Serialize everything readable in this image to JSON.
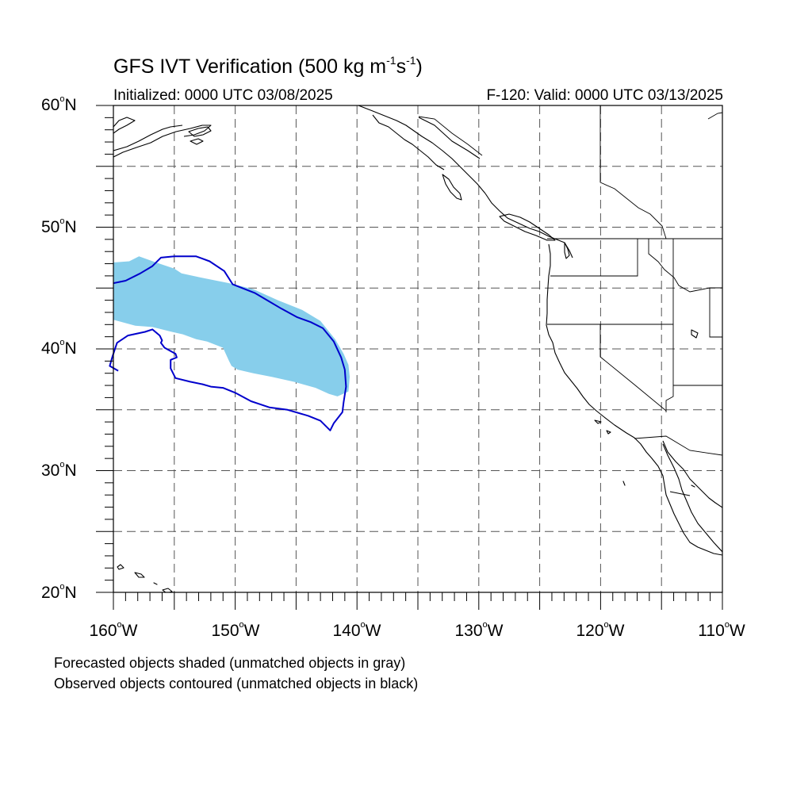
{
  "title": {
    "prefix": "GFS IVT Verification (500 kg m",
    "exp1": "-1",
    "mid": "s",
    "exp2": "-1",
    "suffix": ")"
  },
  "subtitle_left": "Initialized: 0000 UTC 03/08/2025",
  "subtitle_right": "F-120: Valid: 0000 UTC 03/13/2025",
  "map": {
    "lon_range": [
      -160,
      -110
    ],
    "lat_range": [
      20,
      60
    ],
    "grid": "dashed every 5 degrees",
    "lat_labels": [
      {
        "value": 60,
        "text": "60",
        "hemi": "N"
      },
      {
        "value": 50,
        "text": "50",
        "hemi": "N"
      },
      {
        "value": 40,
        "text": "40",
        "hemi": "N"
      },
      {
        "value": 30,
        "text": "30",
        "hemi": "N"
      },
      {
        "value": 20,
        "text": "20",
        "hemi": "N"
      }
    ],
    "lon_labels": [
      {
        "value": -160,
        "text": "160",
        "hemi": "W"
      },
      {
        "value": -150,
        "text": "150",
        "hemi": "W"
      },
      {
        "value": -140,
        "text": "140",
        "hemi": "W"
      },
      {
        "value": -130,
        "text": "130",
        "hemi": "W"
      },
      {
        "value": -120,
        "text": "120",
        "hemi": "W"
      },
      {
        "value": -110,
        "text": "110",
        "hemi": "W"
      }
    ],
    "forecast_object_color": "#87ceeb",
    "observed_contour_color": "#0000cc",
    "forecast_object_outline": [
      [
        -160,
        47.1
      ],
      [
        -158.7,
        47.2
      ],
      [
        -157.9,
        47.6
      ],
      [
        -156.5,
        47.1
      ],
      [
        -155,
        46.6
      ],
      [
        -154.4,
        46.2
      ],
      [
        -152.5,
        45.8
      ],
      [
        -150.5,
        45.4
      ],
      [
        -148.5,
        44.9
      ],
      [
        -146.5,
        44
      ],
      [
        -144.5,
        43.2
      ],
      [
        -143,
        42.3
      ],
      [
        -141.8,
        40.8
      ],
      [
        -141.1,
        39.6
      ],
      [
        -140.7,
        38.7
      ],
      [
        -140.6,
        37.7
      ],
      [
        -140.7,
        36.5
      ],
      [
        -141.6,
        36.1
      ],
      [
        -142.3,
        36.3
      ],
      [
        -143.4,
        36.8
      ],
      [
        -145.2,
        37.3
      ],
      [
        -147,
        37.7
      ],
      [
        -148.5,
        38
      ],
      [
        -149.8,
        38.3
      ],
      [
        -150.3,
        38.6
      ],
      [
        -150.5,
        39
      ],
      [
        -151,
        40.1
      ],
      [
        -152.3,
        40.6
      ],
      [
        -153.2,
        40.8
      ],
      [
        -154.3,
        41.2
      ],
      [
        -155.2,
        41.4
      ],
      [
        -156.8,
        41.8
      ],
      [
        -158.2,
        41.9
      ],
      [
        -160,
        42.4
      ]
    ],
    "observed_object_outline": [
      [
        -160,
        45.4
      ],
      [
        -159,
        45.6
      ],
      [
        -157.8,
        46.2
      ],
      [
        -156.8,
        46.8
      ],
      [
        -156.1,
        47.5
      ],
      [
        -155,
        47.6
      ],
      [
        -153.2,
        47.6
      ],
      [
        -152.1,
        47.2
      ],
      [
        -150.9,
        46.4
      ],
      [
        -150.2,
        45.3
      ],
      [
        -148.4,
        44.6
      ],
      [
        -146.2,
        43.3
      ],
      [
        -144.9,
        42.6
      ],
      [
        -143.8,
        42.2
      ],
      [
        -142.8,
        41.7
      ],
      [
        -141.9,
        40.6
      ],
      [
        -141.3,
        39.3
      ],
      [
        -141,
        38.3
      ],
      [
        -140.9,
        36.9
      ],
      [
        -141.1,
        35.6
      ],
      [
        -141.2,
        34.8
      ],
      [
        -141.9,
        33.9
      ],
      [
        -142.2,
        33.3
      ],
      [
        -143,
        34.1
      ],
      [
        -144,
        34.5
      ],
      [
        -145.7,
        35
      ],
      [
        -147.2,
        35.2
      ],
      [
        -148.7,
        35.7
      ],
      [
        -150,
        36.4
      ],
      [
        -151,
        36.8
      ],
      [
        -152,
        36.9
      ],
      [
        -152.7,
        37.1
      ],
      [
        -153.7,
        37.3
      ],
      [
        -154.9,
        37.6
      ],
      [
        -155.3,
        38.4
      ],
      [
        -155.3,
        39.1
      ],
      [
        -154.8,
        39.3
      ],
      [
        -154.9,
        39.6
      ],
      [
        -155.8,
        40.1
      ],
      [
        -156.1,
        40.5
      ],
      [
        -156,
        40.7
      ],
      [
        -156.2,
        41.1
      ],
      [
        -156.8,
        41.6
      ],
      [
        -157.4,
        41.4
      ],
      [
        -158.8,
        41.1
      ],
      [
        -159.7,
        40.5
      ],
      [
        -159.9,
        39.9
      ],
      [
        -160.1,
        39.3
      ],
      [
        -160.3,
        38.6
      ],
      [
        -159.6,
        38.2
      ]
    ]
  },
  "footnotes": [
    "Forecasted objects shaded (unmatched objects in gray)",
    "Observed objects contoured (unmatched objects in black)"
  ]
}
